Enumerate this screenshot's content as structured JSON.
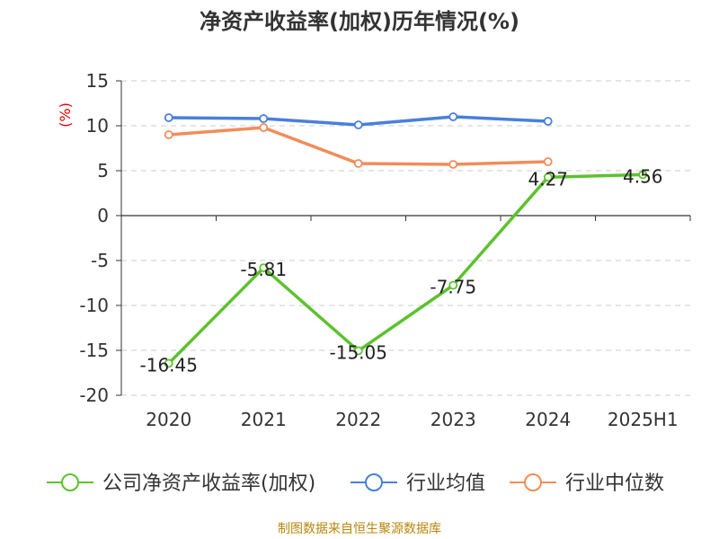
{
  "colors": {
    "company": "#5cc22e",
    "industry_avg": "#4a7fdc",
    "industry_median": "#f28c5a",
    "axis_label_unit": "#dd0000",
    "grid": "#cccccc",
    "source": "#b8860b"
  },
  "source_note": "制图数据来自恒生聚源数据库",
  "chart_data": {
    "type": "line",
    "title": "净资产收益率(加权)历年情况(%)",
    "ylabel": "(%)",
    "xlabel": "",
    "categories": [
      "2020",
      "2021",
      "2022",
      "2023",
      "2024",
      "2025H1"
    ],
    "ylim": [
      -20,
      15
    ],
    "yticks": [
      "15",
      "10",
      "5",
      "0",
      "-5",
      "-10",
      "-15",
      "-20"
    ],
    "grid": true,
    "legend_position": "bottom",
    "series": [
      {
        "name": "公司净资产收益率(加权)",
        "color_key": "company",
        "values": [
          -16.45,
          -5.81,
          -15.05,
          -7.75,
          4.27,
          4.56
        ],
        "labels": [
          "-16.45",
          "-5.81",
          "-15.05",
          "-7.75",
          "4.27",
          "4.56"
        ]
      },
      {
        "name": "行业均值",
        "color_key": "industry_avg",
        "values": [
          10.9,
          10.8,
          10.1,
          11.0,
          10.5,
          null
        ]
      },
      {
        "name": "行业中位数",
        "color_key": "industry_median",
        "values": [
          9.0,
          9.8,
          5.8,
          5.7,
          6.0,
          null
        ]
      }
    ]
  }
}
